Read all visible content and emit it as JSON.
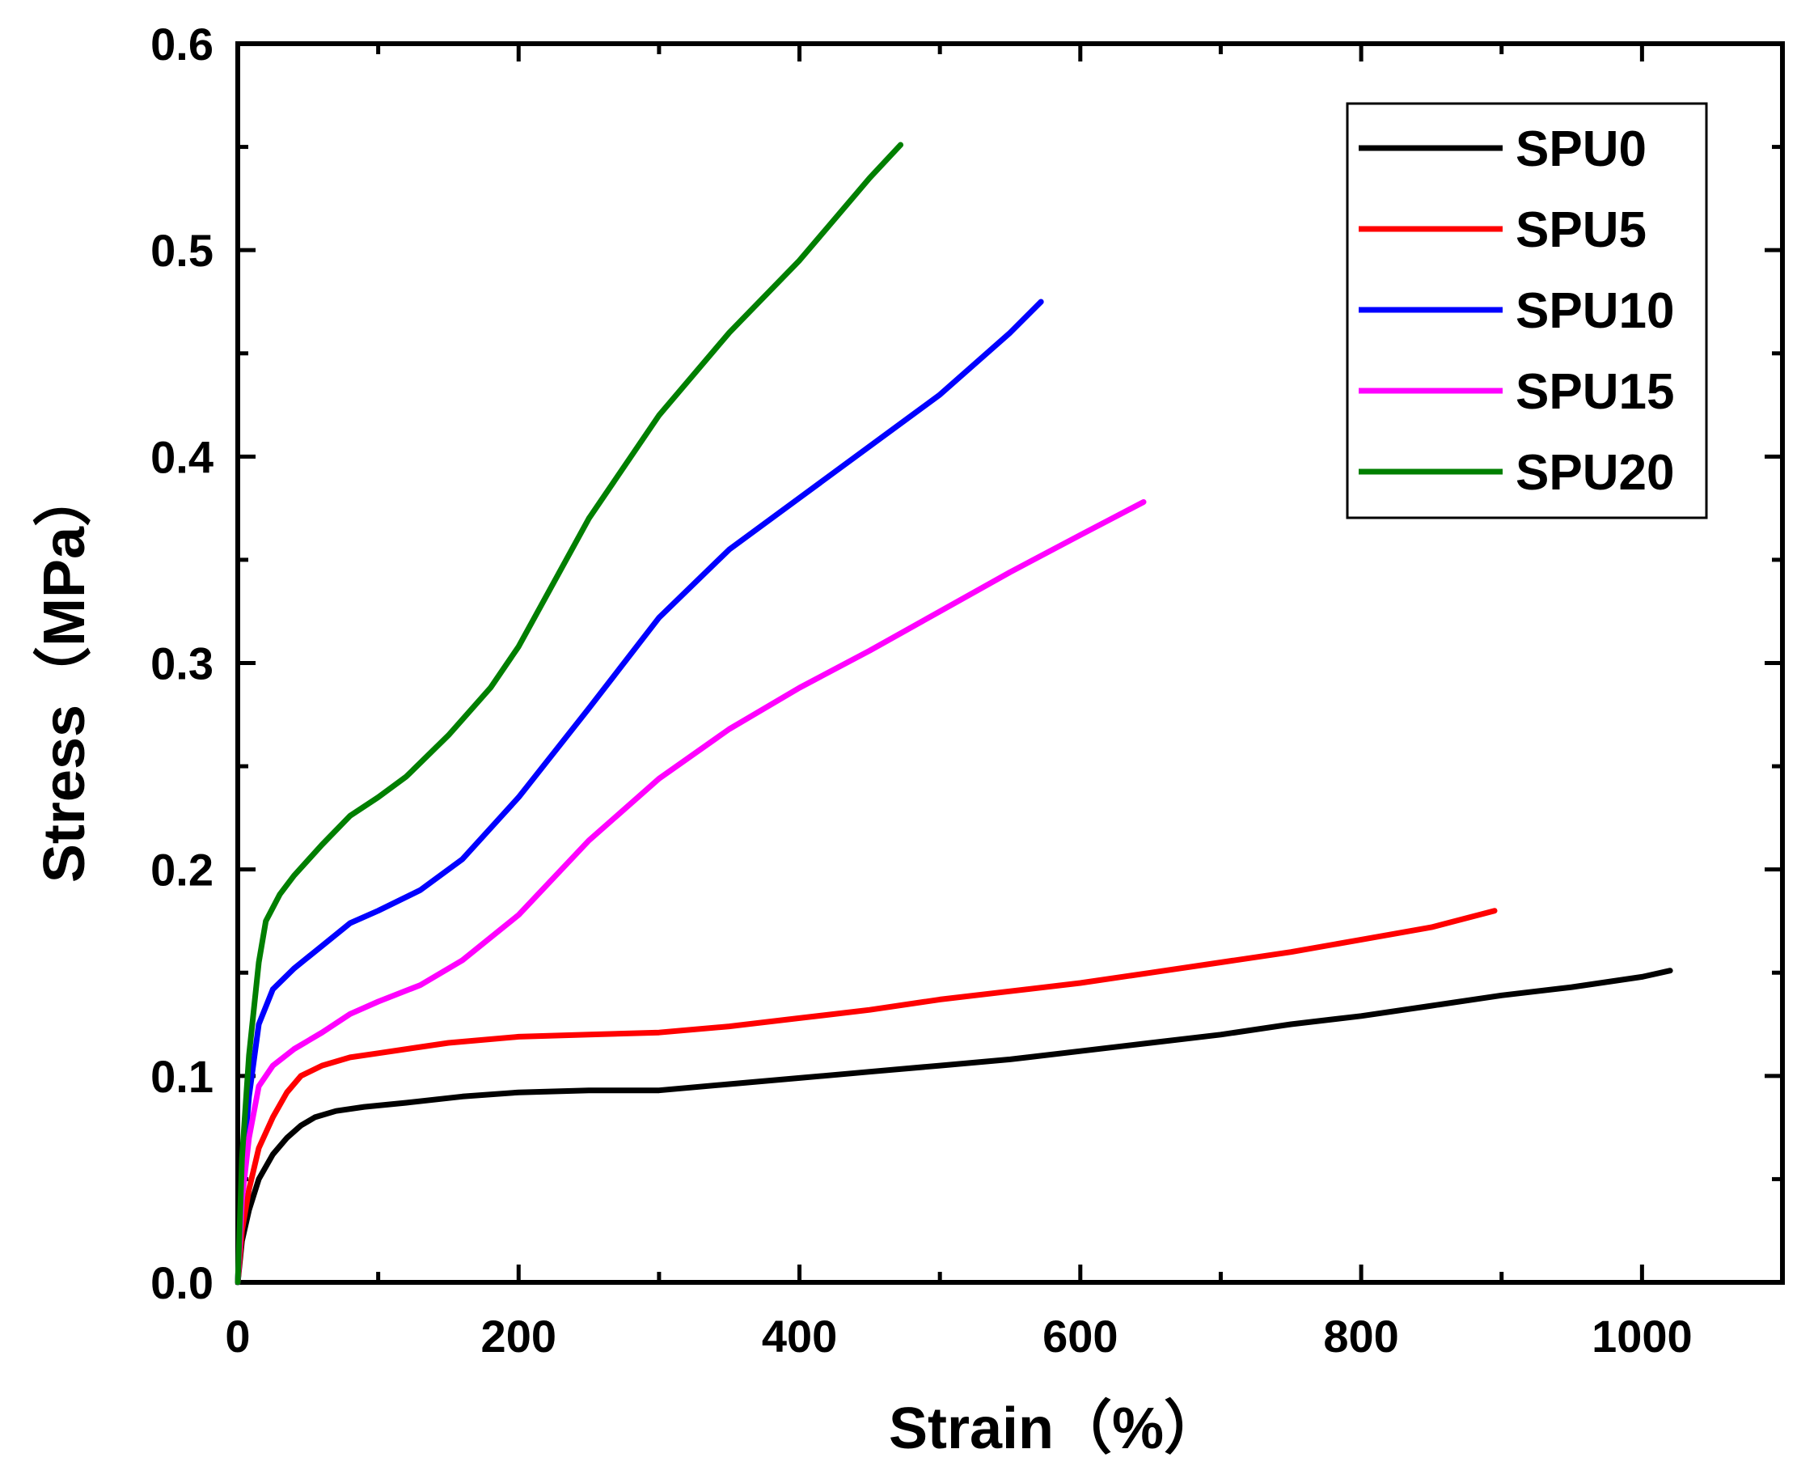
{
  "chart_data": {
    "type": "line",
    "title": "",
    "xlabel": "Strain（%）",
    "ylabel": "Stress（MPa）",
    "xlim": [
      0,
      1100
    ],
    "ylim": [
      0,
      0.6
    ],
    "xticks": [
      0,
      200,
      400,
      600,
      800,
      1000
    ],
    "xtick_labels": [
      "0",
      "200",
      "400",
      "600",
      "800",
      "1000"
    ],
    "yticks": [
      0,
      0.1,
      0.2,
      0.3,
      0.4,
      0.5,
      0.6
    ],
    "ytick_labels": [
      "0.0",
      "0.1",
      "0.2",
      "0.3",
      "0.4",
      "0.5",
      "0.6"
    ],
    "grid": false,
    "legend_position": "top-right",
    "series": [
      {
        "name": "SPU0",
        "color": "#000000",
        "x": [
          0,
          3,
          8,
          15,
          25,
          35,
          45,
          55,
          70,
          90,
          120,
          160,
          200,
          250,
          300,
          350,
          400,
          450,
          500,
          550,
          600,
          650,
          700,
          750,
          800,
          850,
          900,
          950,
          1000,
          1020
        ],
        "y": [
          0,
          0.02,
          0.035,
          0.05,
          0.062,
          0.07,
          0.076,
          0.08,
          0.083,
          0.085,
          0.087,
          0.09,
          0.092,
          0.093,
          0.093,
          0.096,
          0.099,
          0.102,
          0.105,
          0.108,
          0.112,
          0.116,
          0.12,
          0.125,
          0.129,
          0.134,
          0.139,
          0.143,
          0.148,
          0.151
        ]
      },
      {
        "name": "SPU5",
        "color": "#ff0000",
        "x": [
          0,
          3,
          8,
          15,
          25,
          35,
          45,
          60,
          80,
          100,
          150,
          200,
          250,
          300,
          350,
          400,
          450,
          500,
          550,
          600,
          650,
          700,
          750,
          800,
          850,
          895
        ],
        "y": [
          0,
          0.025,
          0.045,
          0.065,
          0.08,
          0.092,
          0.1,
          0.105,
          0.109,
          0.111,
          0.116,
          0.119,
          0.12,
          0.121,
          0.124,
          0.128,
          0.132,
          0.137,
          0.141,
          0.145,
          0.15,
          0.155,
          0.16,
          0.166,
          0.172,
          0.18
        ]
      },
      {
        "name": "SPU10",
        "color": "#0000ff",
        "x": [
          0,
          3,
          8,
          15,
          25,
          40,
          60,
          80,
          100,
          130,
          160,
          200,
          250,
          300,
          350,
          400,
          450,
          500,
          550,
          572
        ],
        "y": [
          0,
          0.05,
          0.09,
          0.125,
          0.142,
          0.152,
          0.163,
          0.174,
          0.18,
          0.19,
          0.205,
          0.235,
          0.278,
          0.322,
          0.355,
          0.38,
          0.405,
          0.43,
          0.46,
          0.475
        ]
      },
      {
        "name": "SPU15",
        "color": "#ff00ff",
        "x": [
          0,
          3,
          8,
          15,
          25,
          40,
          60,
          80,
          100,
          130,
          160,
          200,
          250,
          300,
          350,
          400,
          450,
          500,
          550,
          600,
          645
        ],
        "y": [
          0,
          0.04,
          0.07,
          0.095,
          0.105,
          0.113,
          0.121,
          0.13,
          0.136,
          0.144,
          0.156,
          0.178,
          0.214,
          0.244,
          0.268,
          0.288,
          0.306,
          0.325,
          0.344,
          0.362,
          0.378
        ]
      },
      {
        "name": "SPU20",
        "color": "#007f00",
        "x": [
          0,
          3,
          8,
          15,
          20,
          30,
          40,
          60,
          80,
          100,
          120,
          150,
          180,
          200,
          250,
          300,
          350,
          400,
          450,
          472
        ],
        "y": [
          0,
          0.06,
          0.11,
          0.155,
          0.175,
          0.188,
          0.197,
          0.212,
          0.226,
          0.235,
          0.245,
          0.265,
          0.288,
          0.308,
          0.37,
          0.42,
          0.46,
          0.495,
          0.535,
          0.551
        ]
      }
    ]
  }
}
